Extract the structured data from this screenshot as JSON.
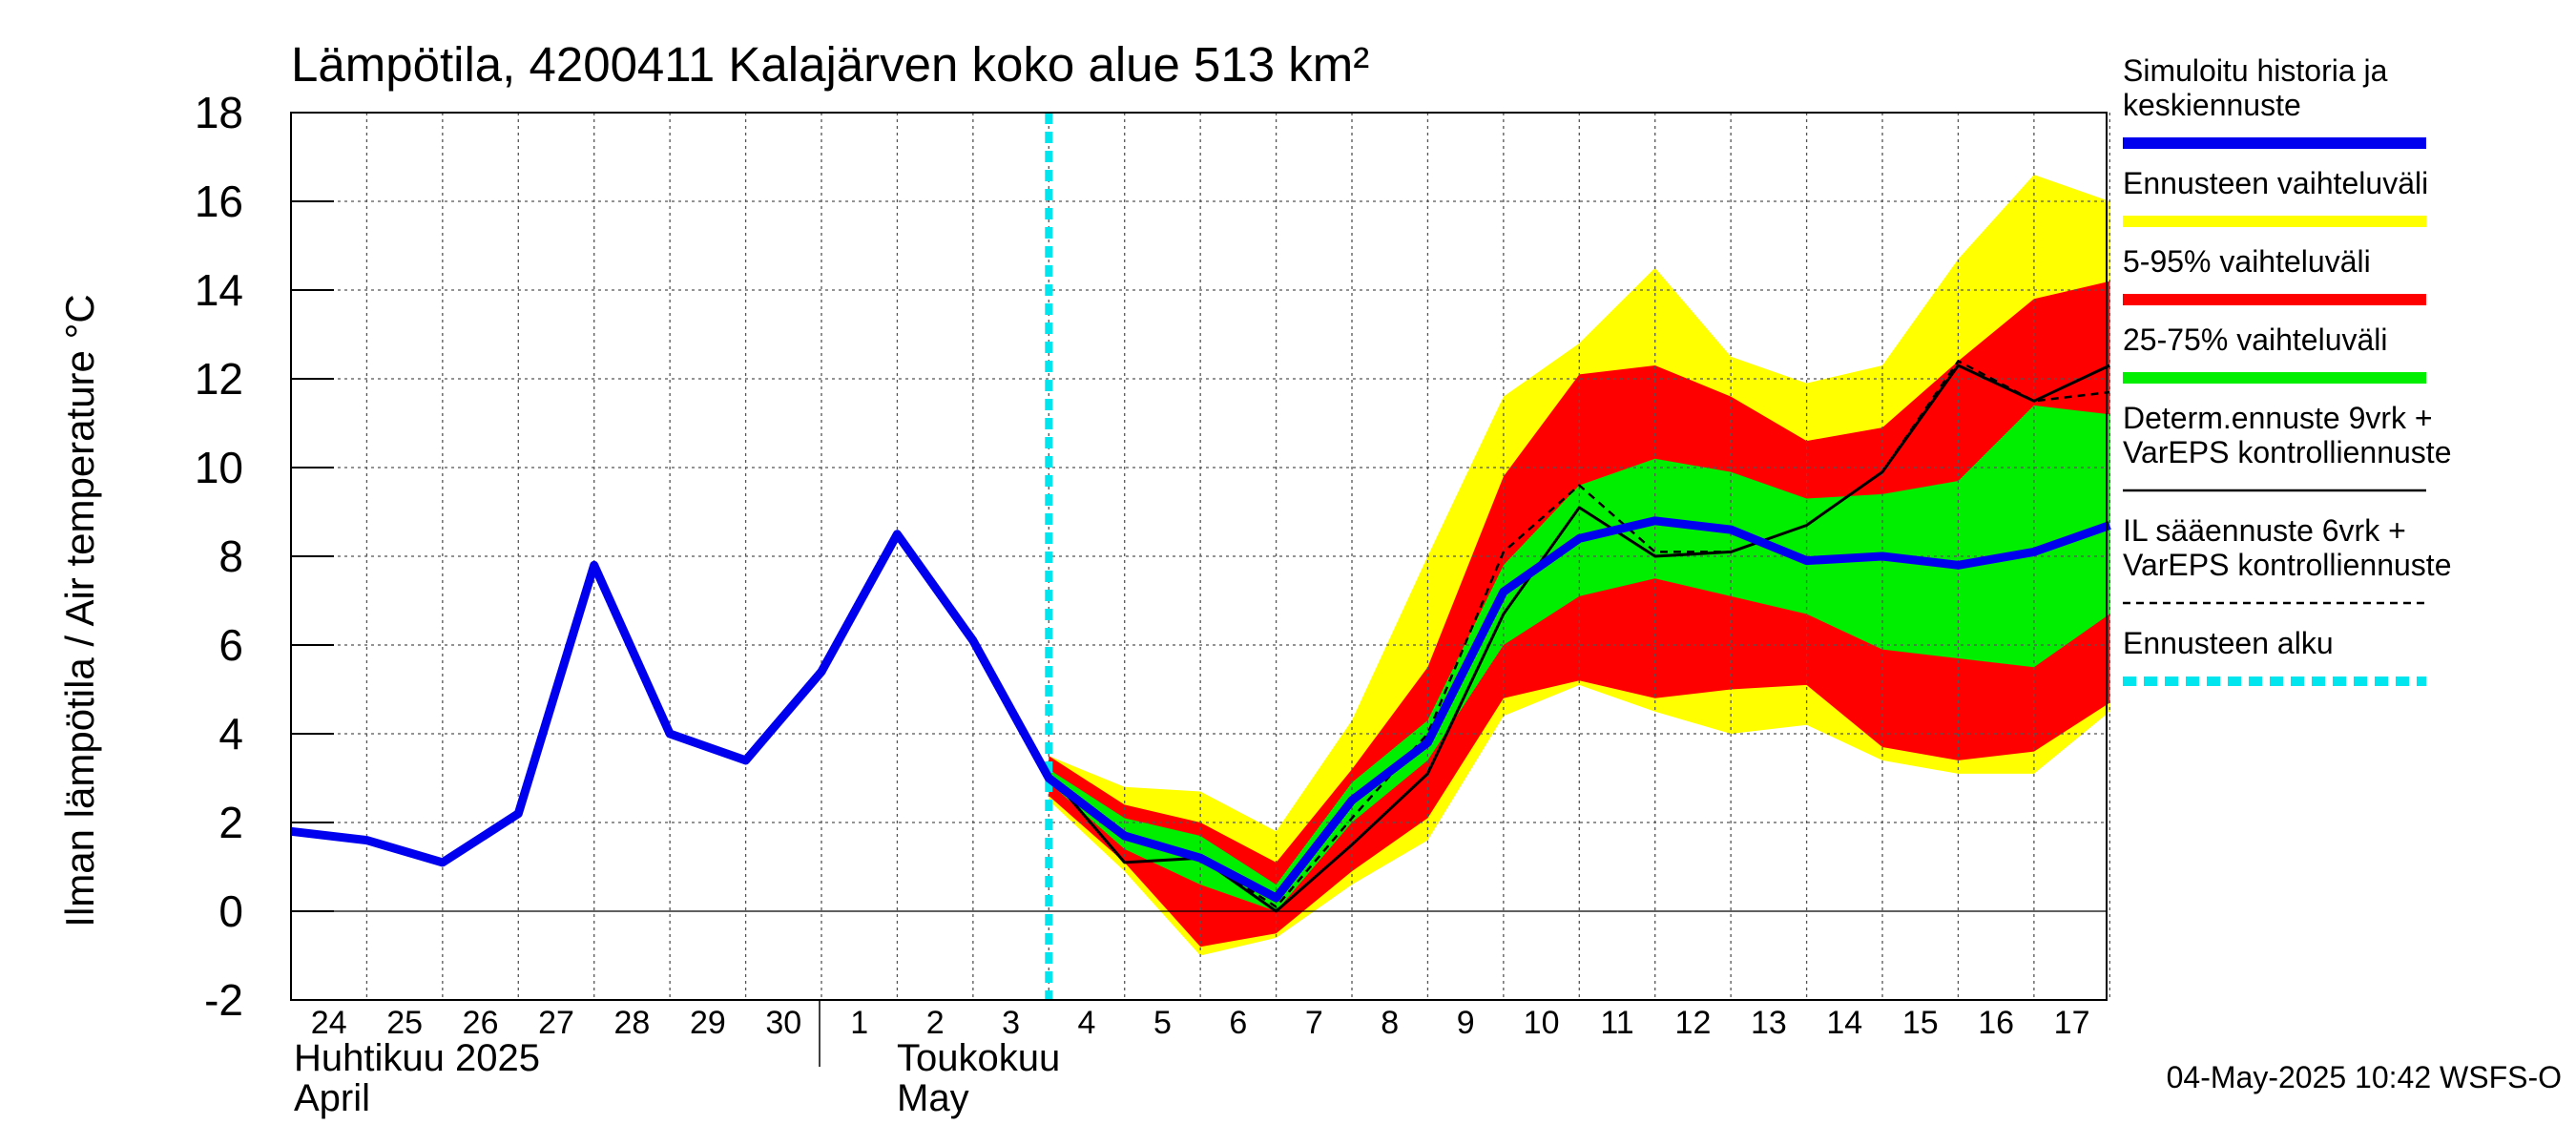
{
  "chart_data": {
    "type": "area",
    "title": "Lämpötila, 4200411 Kalajärven koko alue 513 km²",
    "ylabel": "Ilman lämpötila / Air temperature    °C",
    "ylim": [
      -2,
      18
    ],
    "y_ticks": [
      -2,
      0,
      2,
      4,
      6,
      8,
      10,
      12,
      14,
      16,
      18
    ],
    "x_range": [
      "2025-04-24",
      "2025-05-17T23:00"
    ],
    "x_tick_labels": [
      "24",
      "25",
      "26",
      "27",
      "28",
      "29",
      "30",
      "1",
      "2",
      "3",
      "4",
      "5",
      "6",
      "7",
      "8",
      "9",
      "10",
      "11",
      "12",
      "13",
      "14",
      "15",
      "16",
      "17"
    ],
    "month_labels": [
      {
        "fi": "Huhtikuu  2025",
        "en": "April"
      },
      {
        "fi": "Toukokuu",
        "en": "May"
      }
    ],
    "grid": true,
    "legend_position": "right",
    "forecast_start": "2025-05-04",
    "series": [
      {
        "name": "Ennusteen vaihteluväli",
        "kind": "band",
        "color": "#ffff00",
        "x": [
          "2025-05-04",
          "2025-05-05",
          "2025-05-06",
          "2025-05-07",
          "2025-05-08",
          "2025-05-09",
          "2025-05-10",
          "2025-05-11",
          "2025-05-12",
          "2025-05-13",
          "2025-05-14",
          "2025-05-15",
          "2025-05-16",
          "2025-05-17",
          "2025-05-18"
        ],
        "upper": [
          3.5,
          2.8,
          2.7,
          1.8,
          4.3,
          8.0,
          11.6,
          12.8,
          14.5,
          12.5,
          11.9,
          12.3,
          14.7,
          16.6,
          16.0
        ],
        "lower": [
          2.5,
          0.9,
          -1.0,
          -0.6,
          0.6,
          1.6,
          4.4,
          5.1,
          4.5,
          4.0,
          4.2,
          3.4,
          3.1,
          3.1,
          4.5
        ]
      },
      {
        "name": "5-95% vaihteluväli",
        "kind": "band",
        "color": "#ff0000",
        "x": [
          "2025-05-04",
          "2025-05-05",
          "2025-05-06",
          "2025-05-07",
          "2025-05-08",
          "2025-05-09",
          "2025-05-10",
          "2025-05-11",
          "2025-05-12",
          "2025-05-13",
          "2025-05-14",
          "2025-05-15",
          "2025-05-16",
          "2025-05-17",
          "2025-05-18"
        ],
        "upper": [
          3.5,
          2.4,
          2.0,
          1.1,
          3.2,
          5.5,
          9.8,
          12.1,
          12.3,
          11.6,
          10.6,
          10.9,
          12.4,
          13.8,
          14.2
        ],
        "lower": [
          2.6,
          1.1,
          -0.8,
          -0.5,
          0.9,
          2.1,
          4.8,
          5.2,
          4.8,
          5.0,
          5.1,
          3.7,
          3.4,
          3.6,
          4.7
        ]
      },
      {
        "name": "25-75% vaihteluväli",
        "kind": "band",
        "color": "#00ee00",
        "x": [
          "2025-05-04",
          "2025-05-05",
          "2025-05-06",
          "2025-05-07",
          "2025-05-08",
          "2025-05-09",
          "2025-05-10",
          "2025-05-11",
          "2025-05-12",
          "2025-05-13",
          "2025-05-14",
          "2025-05-15",
          "2025-05-16",
          "2025-05-17",
          "2025-05-18"
        ],
        "upper": [
          3.2,
          2.1,
          1.7,
          0.6,
          2.9,
          4.3,
          7.8,
          9.6,
          10.2,
          9.9,
          9.3,
          9.4,
          9.7,
          11.4,
          11.2
        ],
        "lower": [
          2.9,
          1.4,
          0.6,
          0.0,
          2.0,
          3.4,
          6.0,
          7.1,
          7.5,
          7.1,
          6.7,
          5.9,
          5.7,
          5.5,
          6.7
        ]
      },
      {
        "name": "Determ.ennuste 9vrk + VarEPS kontrolliennuste",
        "kind": "line",
        "color": "#000000",
        "x": [
          "2025-05-02",
          "2025-05-03",
          "2025-05-04",
          "2025-05-05",
          "2025-05-06",
          "2025-05-07",
          "2025-05-08",
          "2025-05-09",
          "2025-05-10",
          "2025-05-11",
          "2025-05-12",
          "2025-05-13",
          "2025-05-14",
          "2025-05-15",
          "2025-05-16",
          "2025-05-17",
          "2025-05-18"
        ],
        "y": [
          8.4,
          6.1,
          3.1,
          1.1,
          1.2,
          0.0,
          1.5,
          3.1,
          6.7,
          9.1,
          8.0,
          8.1,
          8.7,
          9.9,
          12.3,
          11.5,
          12.3
        ]
      },
      {
        "name": "IL sääennuste 6vrk  +   VarEPS kontrolliennuste",
        "kind": "dashed",
        "color": "#000000",
        "x": [
          "2025-05-03",
          "2025-05-04",
          "2025-05-05",
          "2025-05-06",
          "2025-05-07",
          "2025-05-08",
          "2025-05-09",
          "2025-05-10",
          "2025-05-11",
          "2025-05-12",
          "2025-05-13",
          "2025-05-14",
          "2025-05-15",
          "2025-05-16",
          "2025-05-17",
          "2025-05-18"
        ],
        "y": [
          6.1,
          3.0,
          1.7,
          1.2,
          0.1,
          2.1,
          4.0,
          8.1,
          9.6,
          8.1,
          8.1,
          8.7,
          9.9,
          12.4,
          11.5,
          11.7
        ]
      },
      {
        "name": "Simuloitu historia ja keskiennuste",
        "kind": "line",
        "color": "#0000ee",
        "x": [
          "2025-04-24",
          "2025-04-25",
          "2025-04-26",
          "2025-04-27",
          "2025-04-28",
          "2025-04-29",
          "2025-04-30",
          "2025-05-01",
          "2025-05-02",
          "2025-05-03",
          "2025-05-04",
          "2025-05-05",
          "2025-05-06",
          "2025-05-07",
          "2025-05-08",
          "2025-05-09",
          "2025-05-10",
          "2025-05-11",
          "2025-05-12",
          "2025-05-13",
          "2025-05-14",
          "2025-05-15",
          "2025-05-16",
          "2025-05-17",
          "2025-05-18"
        ],
        "y": [
          1.8,
          1.6,
          1.1,
          2.2,
          7.8,
          4.0,
          3.4,
          5.4,
          8.5,
          6.1,
          3.0,
          1.7,
          1.2,
          0.3,
          2.5,
          3.8,
          7.2,
          8.4,
          8.8,
          8.6,
          7.9,
          8.0,
          7.8,
          8.1,
          8.7
        ]
      }
    ],
    "legend": [
      {
        "lines": [
          "Simuloitu historia ja",
          "keskiennuste"
        ],
        "color": "#0000ee",
        "style": "thick"
      },
      {
        "lines": [
          "Ennusteen vaihteluväli"
        ],
        "color": "#ffff00",
        "style": "thick"
      },
      {
        "lines": [
          "5-95% vaihteluväli"
        ],
        "color": "#ff0000",
        "style": "thick"
      },
      {
        "lines": [
          "25-75% vaihteluväli"
        ],
        "color": "#00ee00",
        "style": "thick"
      },
      {
        "lines": [
          "Determ.ennuste 9vrk +",
          "VarEPS kontrolliennuste"
        ],
        "color": "#000000",
        "style": "thin"
      },
      {
        "lines": [
          "IL sääennuste 6vrk  +",
          "  VarEPS kontrolliennuste"
        ],
        "color": "#000000",
        "style": "dashed"
      },
      {
        "lines": [
          "Ennusteen alku"
        ],
        "color": "#00e5ee",
        "style": "dotted"
      }
    ],
    "footer": "04-May-2025 10:42 WSFS-O"
  }
}
